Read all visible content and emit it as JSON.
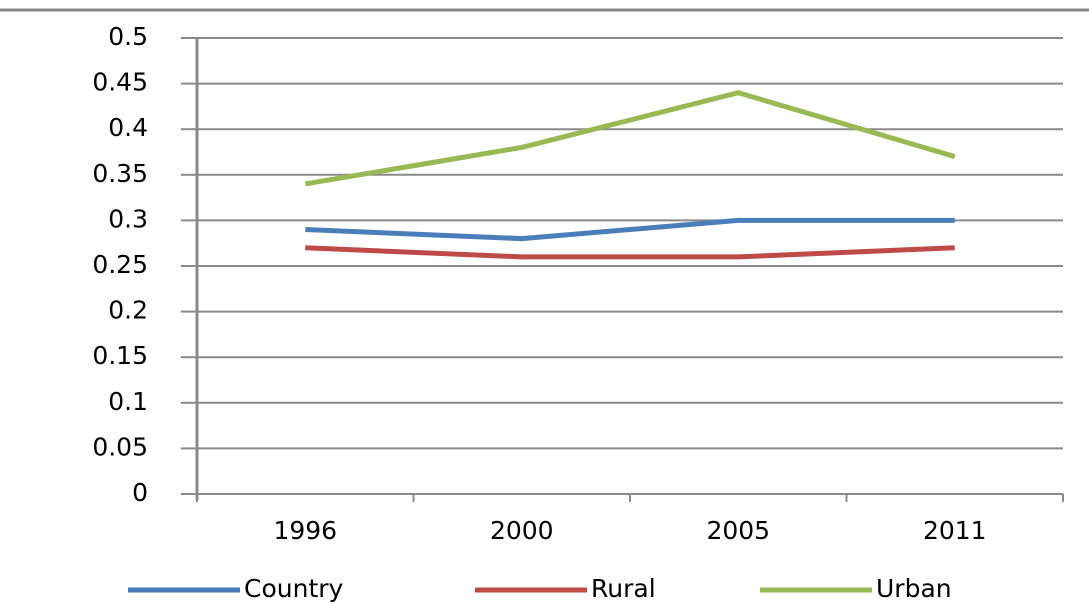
{
  "chart_data": {
    "type": "line",
    "categories": [
      "1996",
      "2000",
      "2005",
      "2011"
    ],
    "series": [
      {
        "name": "Country",
        "color": "#4a7ebb",
        "values": [
          0.29,
          0.28,
          0.3,
          0.3
        ]
      },
      {
        "name": "Rural",
        "color": "#be4b48",
        "values": [
          0.27,
          0.26,
          0.26,
          0.27
        ]
      },
      {
        "name": "Urban",
        "color": "#98b954",
        "values": [
          0.34,
          0.38,
          0.44,
          0.37
        ]
      }
    ],
    "ylim": [
      0,
      0.5
    ],
    "yticks": [
      0,
      0.05,
      0.1,
      0.15,
      0.2,
      0.25,
      0.3,
      0.35,
      0.4,
      0.45,
      0.5
    ],
    "grid": true,
    "legend": "bottom"
  }
}
